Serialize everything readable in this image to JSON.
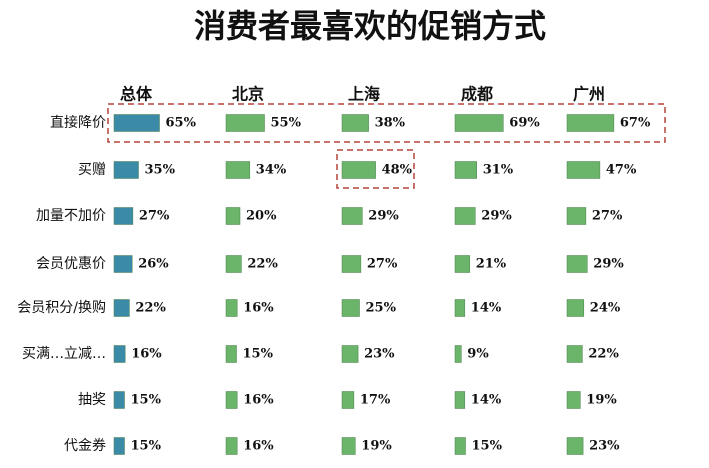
{
  "chart_data": {
    "type": "bar",
    "orientation": "horizontal",
    "title": "消费者最喜欢的促销方式",
    "categories": [
      "直接降价",
      "买赠",
      "加量不加价",
      "会员优惠价",
      "会员积分/换购",
      "买满…立减…",
      "抽奖",
      "代金券"
    ],
    "series": [
      {
        "name": "总体",
        "color": "#3a8aa8",
        "values": [
          65,
          35,
          27,
          26,
          22,
          16,
          15,
          15
        ],
        "value_labels": [
          "65%",
          "35%",
          "27%",
          "26%",
          "22%",
          "16%",
          "15%",
          "15%"
        ]
      },
      {
        "name": "北京",
        "color": "#6ab56a",
        "values": [
          55,
          34,
          20,
          22,
          16,
          15,
          16,
          16
        ],
        "value_labels": [
          "55%",
          "34%",
          "20%",
          "22%",
          "16%",
          "15%",
          "16%",
          "16%"
        ]
      },
      {
        "name": "上海",
        "color": "#6ab56a",
        "values": [
          38,
          48,
          29,
          27,
          25,
          23,
          17,
          19
        ],
        "value_labels": [
          "38%",
          "48%",
          "29%",
          "27%",
          "25%",
          "23%",
          "17%",
          "19%"
        ]
      },
      {
        "name": "成都",
        "color": "#6ab56a",
        "values": [
          69,
          31,
          29,
          21,
          14,
          9,
          14,
          15
        ],
        "value_labels": [
          "69%",
          "31%",
          "29%",
          "21%",
          "14%",
          "9%",
          "14%",
          "15%"
        ]
      },
      {
        "name": "广州",
        "color": "#6ab56a",
        "values": [
          67,
          47,
          27,
          29,
          24,
          22,
          19,
          23
        ],
        "value_labels": [
          "67%",
          "47%",
          "27%",
          "29%",
          "24%",
          "22%",
          "19%",
          "23%"
        ]
      }
    ]
  }
}
